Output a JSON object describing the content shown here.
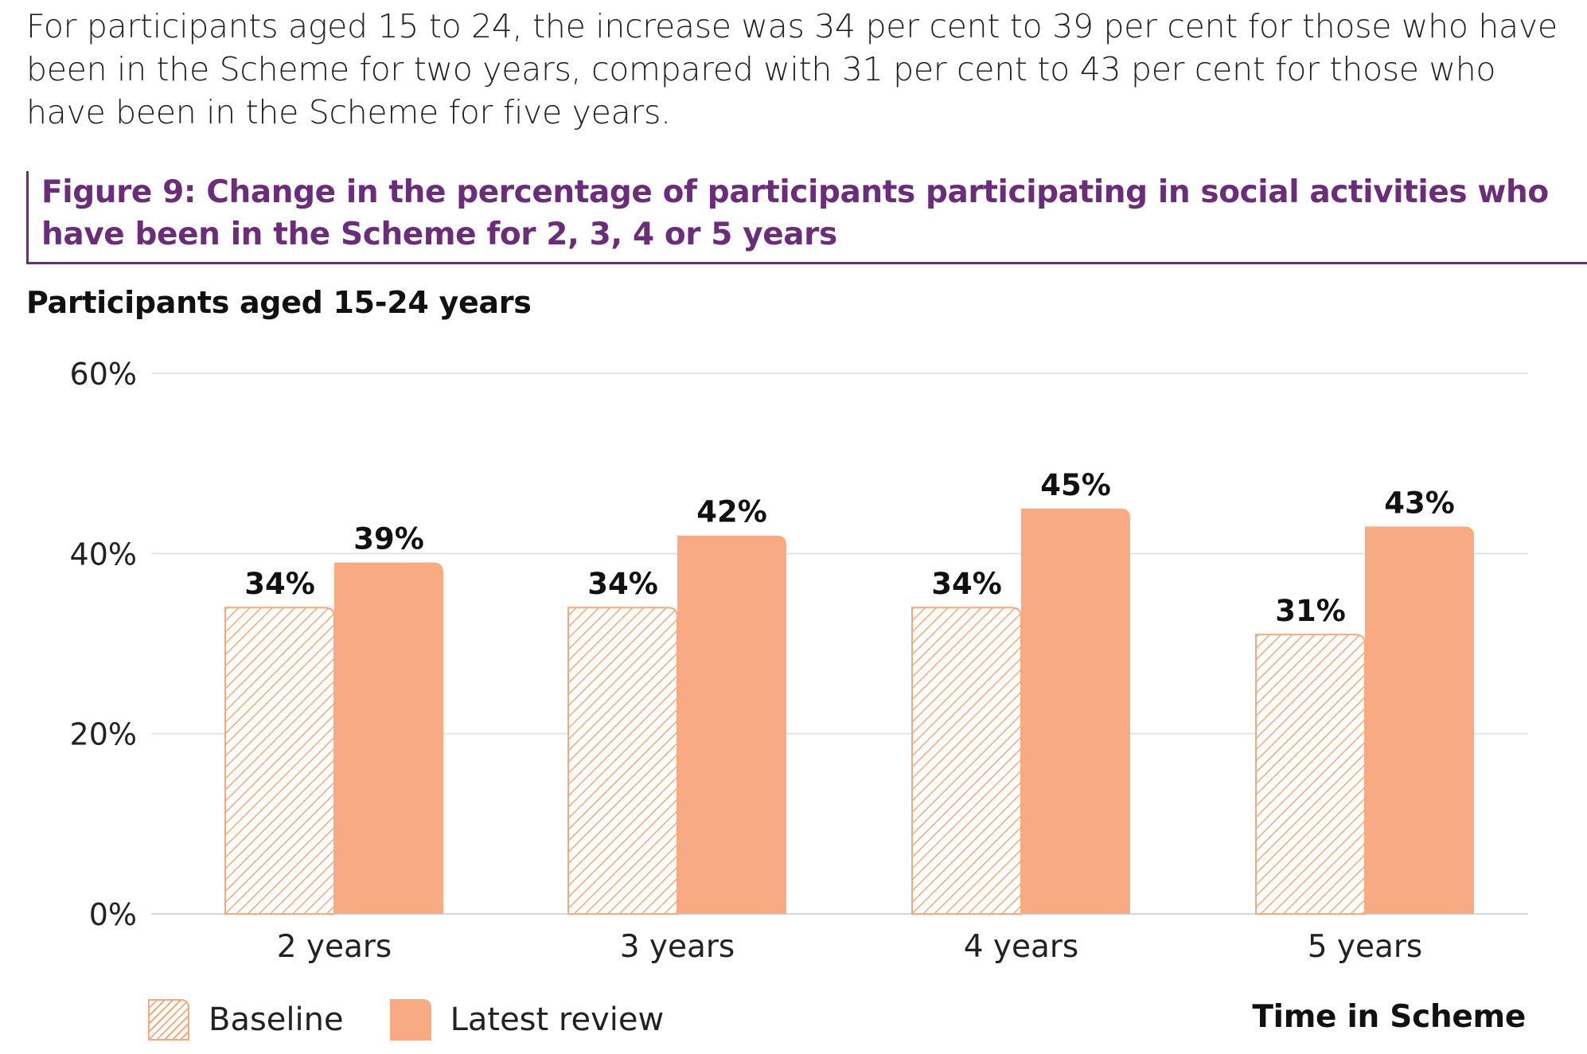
{
  "intro_text": "For participants aged 15 to 24, the increase was 34 per cent to 39 per cent for those who have been in the Scheme for two years, compared with 31 per cent to 43 per cent for those who have been in the Scheme for five years.",
  "figure": {
    "title_line1": "Figure 9: Change in the percentage of participants participating in social activities who",
    "title_line2": "have been in the Scheme for 2, 3, 4 or 5 years"
  },
  "colors": {
    "title_purple": "#6b2c7a",
    "bar_latest": "#f8ab82",
    "bar_baseline_hatch": "#f5a97c",
    "grid": "#dcdcdc"
  },
  "chart_data": {
    "type": "bar",
    "title": "Participants aged 15-24 years",
    "xlabel": "Time in Scheme",
    "ylabel": "",
    "categories": [
      "2 years",
      "3 years",
      "4 years",
      "5 years"
    ],
    "series": [
      {
        "name": "Baseline",
        "values": [
          34,
          34,
          34,
          31
        ],
        "labels": [
          "34%",
          "34%",
          "34%",
          "31%"
        ],
        "style": "hatched"
      },
      {
        "name": "Latest review",
        "values": [
          39,
          42,
          45,
          43
        ],
        "labels": [
          "39%",
          "42%",
          "45%",
          "43%"
        ],
        "style": "solid"
      }
    ],
    "ylim": [
      0,
      60
    ],
    "yticks": [
      0,
      20,
      40,
      60
    ],
    "ytick_labels": [
      "0%",
      "20%",
      "40%",
      "60%"
    ],
    "grid": true,
    "legend_position": "bottom-left"
  }
}
